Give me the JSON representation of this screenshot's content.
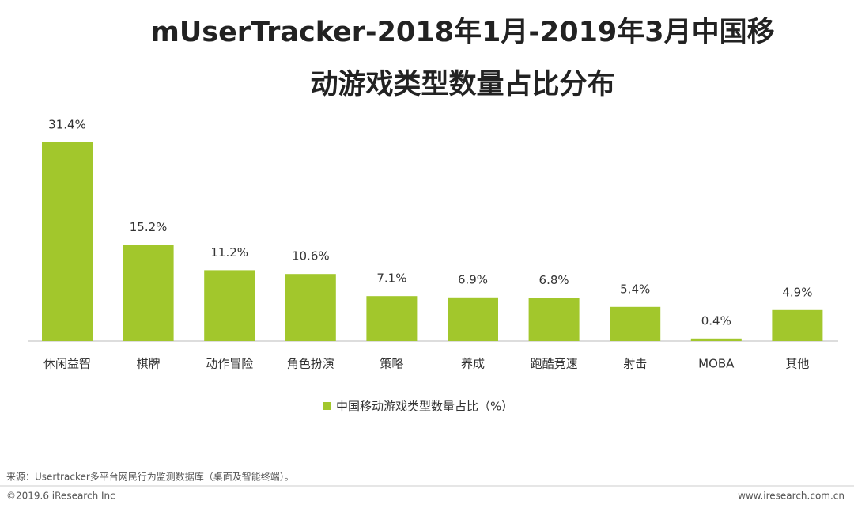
{
  "chart_data": {
    "type": "bar",
    "title": [
      "mUserTracker-2018年1月-2019年3月中国移",
      "动游戏类型数量占比分布"
    ],
    "categories": [
      "休闲益智",
      "棋牌",
      "动作冒险",
      "角色扮演",
      "策略",
      "养成",
      "跑酷竞速",
      "射击",
      "MOBA",
      "其他"
    ],
    "series": [
      {
        "name": "中国移动游戏类型数量占比（%）",
        "color": "#a2c72c",
        "values": [
          31.4,
          15.2,
          11.2,
          10.6,
          7.1,
          6.9,
          6.8,
          5.4,
          0.4,
          4.9
        ],
        "value_labels": [
          "31.4%",
          "15.2%",
          "11.2%",
          "10.6%",
          "7.1%",
          "6.9%",
          "6.8%",
          "5.4%",
          "0.4%",
          "4.9%"
        ]
      }
    ],
    "legend": "bottom",
    "source": "来源：Usertracker多平台网民行为监测数据库（桌面及智能终端）。",
    "copyright": "©2019.6 iResearch Inc",
    "website": "www.iresearch.com.cn"
  }
}
